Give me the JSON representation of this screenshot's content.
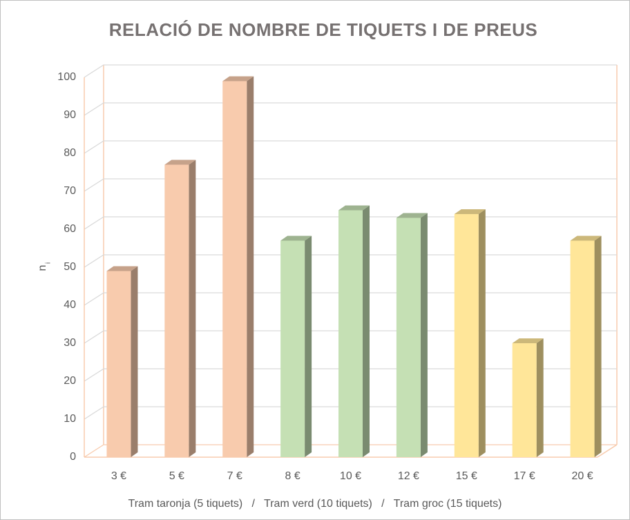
{
  "chart_data": {
    "type": "bar3d",
    "title": "RELACIÓ DE NOMBRE DE TIQUETS I DE PREUS",
    "y_label": "n",
    "y_label_sub": "i",
    "x_label": "Tram taronja (5 tiquets)   /   Tram verd (10 tiquets)   /   Tram groc (15 tiquets)",
    "categories": [
      "3 €",
      "5 €",
      "7 €",
      "8 €",
      "10 €",
      "12 €",
      "15 €",
      "17 €",
      "20 €"
    ],
    "values": [
      49,
      77,
      99,
      57,
      65,
      63,
      64,
      30,
      57
    ],
    "colors": [
      "#f8cbad",
      "#f8cbad",
      "#f8cbad",
      "#c5e0b4",
      "#c5e0b4",
      "#c5e0b4",
      "#ffe699",
      "#ffe699",
      "#ffe699"
    ],
    "ylim": [
      0,
      100
    ],
    "yticks": [
      0,
      10,
      20,
      30,
      40,
      50,
      60,
      70,
      80,
      90,
      100
    ],
    "grid": true
  }
}
